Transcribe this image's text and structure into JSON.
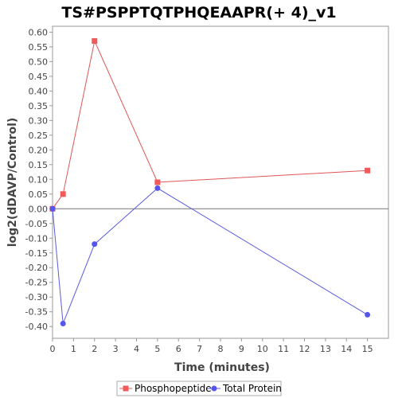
{
  "chart_data": {
    "type": "line",
    "title": "TS#PSPPTQTPHQEAAPR(+ 4)_v1",
    "xlabel": "Time (minutes)",
    "ylabel": "log2(dDAVP/Control)",
    "xlim": [
      0,
      16
    ],
    "ylim": [
      -0.44,
      0.62
    ],
    "x_ticks": [
      0,
      1,
      2,
      3,
      4,
      5,
      6,
      7,
      8,
      9,
      10,
      11,
      12,
      13,
      14,
      15
    ],
    "y_ticks": [
      -0.4,
      -0.35,
      -0.3,
      -0.25,
      -0.2,
      -0.15,
      -0.1,
      -0.05,
      0.0,
      0.05,
      0.1,
      0.15,
      0.2,
      0.25,
      0.3,
      0.35,
      0.4,
      0.45,
      0.5,
      0.55,
      0.6
    ],
    "x_tick_labels": [
      "0",
      "1",
      "2",
      "3",
      "4",
      "5",
      "6",
      "7",
      "8",
      "9",
      "10",
      "11",
      "12",
      "13",
      "14",
      "15"
    ],
    "y_tick_labels": [
      "-0.40",
      "-0.35",
      "-0.30",
      "-0.25",
      "-0.20",
      "-0.15",
      "-0.10",
      "-0.05",
      "0.00",
      "0.05",
      "0.10",
      "0.15",
      "0.20",
      "0.25",
      "0.30",
      "0.35",
      "0.40",
      "0.45",
      "0.50",
      "0.55",
      "0.60"
    ],
    "baseline": 0,
    "grid": false,
    "legend_position": "bottom",
    "series": [
      {
        "name": "Phosphopeptide",
        "marker": "square",
        "color": "#f05a5a",
        "line_color": "#e05555",
        "x": [
          0,
          0.5,
          2,
          5,
          15
        ],
        "y": [
          0.0,
          0.05,
          0.57,
          0.09,
          0.13
        ]
      },
      {
        "name": "Total Protein",
        "marker": "circle",
        "color": "#5555ee",
        "line_color": "#5a5ae0",
        "x": [
          0,
          0.5,
          2,
          5,
          15
        ],
        "y": [
          0.0,
          -0.39,
          -0.12,
          0.07,
          -0.36
        ]
      }
    ]
  }
}
